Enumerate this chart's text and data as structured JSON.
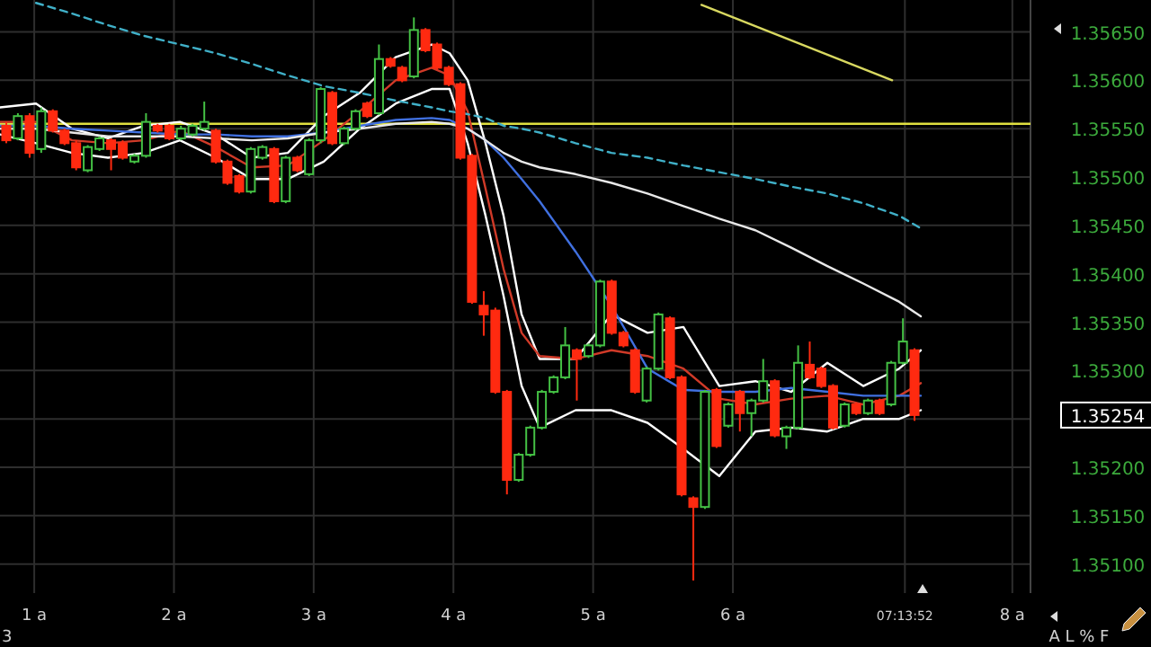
{
  "chart_data": {
    "type": "candlestick",
    "x": [
      0.8,
      0.883,
      0.967,
      1.05,
      1.133,
      1.217,
      1.3,
      1.383,
      1.467,
      1.55,
      1.633,
      1.717,
      1.8,
      1.883,
      1.967,
      2.05,
      2.133,
      2.217,
      2.3,
      2.383,
      2.467,
      2.55,
      2.633,
      2.717,
      2.8,
      2.883,
      2.967,
      3.05,
      3.133,
      3.217,
      3.3,
      3.383,
      3.467,
      3.55,
      3.633,
      3.717,
      3.8,
      3.883,
      3.967,
      4.05,
      4.133,
      4.217,
      4.3,
      4.383,
      4.467,
      4.55,
      4.633,
      4.717,
      4.8,
      4.883,
      4.967,
      5.05,
      5.133,
      5.217,
      5.3,
      5.383,
      5.467,
      5.55,
      5.633,
      5.717,
      5.8,
      5.883,
      5.967,
      6.05,
      6.133,
      6.217,
      6.3,
      6.383,
      6.467,
      6.55,
      6.633,
      6.717,
      6.8,
      6.883,
      6.967,
      7.05,
      7.133,
      7.217,
      7.3
    ],
    "ohlc": [
      [
        1.35553,
        1.35557,
        1.35535,
        1.35538
      ],
      [
        1.3554,
        1.35566,
        1.35538,
        1.35563
      ],
      [
        1.35563,
        1.35566,
        1.3552,
        1.35525
      ],
      [
        1.35529,
        1.35572,
        1.35525,
        1.35568
      ],
      [
        1.35568,
        1.3557,
        1.35546,
        1.35548
      ],
      [
        1.35548,
        1.3555,
        1.35533,
        1.35535
      ],
      [
        1.35535,
        1.35538,
        1.35507,
        1.3551
      ],
      [
        1.35507,
        1.35533,
        1.35505,
        1.35531
      ],
      [
        1.35529,
        1.35542,
        1.35527,
        1.3554
      ],
      [
        1.35538,
        1.3554,
        1.35507,
        1.35529
      ],
      [
        1.35535,
        1.35538,
        1.35518,
        1.3552
      ],
      [
        1.35516,
        1.35524,
        1.35514,
        1.35522
      ],
      [
        1.35522,
        1.35566,
        1.3552,
        1.35557
      ],
      [
        1.35553,
        1.35555,
        1.35546,
        1.35548
      ],
      [
        1.35553,
        1.35555,
        1.35538,
        1.3554
      ],
      [
        1.3554,
        1.35553,
        1.35538,
        1.3555
      ],
      [
        1.35544,
        1.35555,
        1.35542,
        1.35553
      ],
      [
        1.3555,
        1.35578,
        1.35548,
        1.35557
      ],
      [
        1.35548,
        1.3555,
        1.35514,
        1.35516
      ],
      [
        1.35516,
        1.35518,
        1.35492,
        1.35494
      ],
      [
        1.35501,
        1.35503,
        1.35483,
        1.35485
      ],
      [
        1.35485,
        1.35531,
        1.35483,
        1.35529
      ],
      [
        1.3552,
        1.35533,
        1.35518,
        1.35531
      ],
      [
        1.35529,
        1.35531,
        1.35473,
        1.35475
      ],
      [
        1.35475,
        1.35522,
        1.35473,
        1.3552
      ],
      [
        1.3552,
        1.35522,
        1.35505,
        1.35507
      ],
      [
        1.35503,
        1.3554,
        1.35501,
        1.35538
      ],
      [
        1.35538,
        1.35593,
        1.35535,
        1.35591
      ],
      [
        1.35587,
        1.35589,
        1.35533,
        1.35535
      ],
      [
        1.35535,
        1.35552,
        1.35533,
        1.3555
      ],
      [
        1.3555,
        1.3557,
        1.35548,
        1.35568
      ],
      [
        1.35576,
        1.35578,
        1.35561,
        1.35563
      ],
      [
        1.35566,
        1.35637,
        1.35564,
        1.35622
      ],
      [
        1.35622,
        1.35624,
        1.35613,
        1.35615
      ],
      [
        1.35613,
        1.35615,
        1.35598,
        1.356
      ],
      [
        1.35604,
        1.35665,
        1.35602,
        1.35652
      ],
      [
        1.35652,
        1.35654,
        1.35629,
        1.35631
      ],
      [
        1.35637,
        1.35639,
        1.35611,
        1.35613
      ],
      [
        1.35613,
        1.35615,
        1.35594,
        1.35596
      ],
      [
        1.35596,
        1.35598,
        1.35518,
        1.3552
      ],
      [
        1.35522,
        1.35524,
        1.35369,
        1.35371
      ],
      [
        1.35367,
        1.35382,
        1.35336,
        1.35358
      ],
      [
        1.35362,
        1.35365,
        1.35276,
        1.35278
      ],
      [
        1.35278,
        1.3528,
        1.35172,
        1.35187
      ],
      [
        1.35187,
        1.35215,
        1.35185,
        1.35213
      ],
      [
        1.35213,
        1.35243,
        1.35211,
        1.35241
      ],
      [
        1.35241,
        1.3528,
        1.35239,
        1.35278
      ],
      [
        1.35278,
        1.35295,
        1.35276,
        1.35293
      ],
      [
        1.35293,
        1.35345,
        1.35291,
        1.35326
      ],
      [
        1.35321,
        1.35323,
        1.35269,
        1.35312
      ],
      [
        1.35315,
        1.35328,
        1.35313,
        1.35326
      ],
      [
        1.35326,
        1.35394,
        1.35324,
        1.35392
      ],
      [
        1.35392,
        1.35394,
        1.35337,
        1.35339
      ],
      [
        1.35339,
        1.35341,
        1.35324,
        1.35326
      ],
      [
        1.35321,
        1.35323,
        1.35276,
        1.35278
      ],
      [
        1.35269,
        1.35304,
        1.35267,
        1.35302
      ],
      [
        1.35302,
        1.3536,
        1.353,
        1.35358
      ],
      [
        1.35354,
        1.35356,
        1.35291,
        1.35293
      ],
      [
        1.35293,
        1.35295,
        1.3517,
        1.35172
      ],
      [
        1.35168,
        1.3517,
        1.35083,
        1.35159
      ],
      [
        1.35159,
        1.3528,
        1.35157,
        1.35278
      ],
      [
        1.3528,
        1.35282,
        1.3522,
        1.35222
      ],
      [
        1.35243,
        1.35267,
        1.35241,
        1.35265
      ],
      [
        1.35278,
        1.3528,
        1.35237,
        1.35256
      ],
      [
        1.35256,
        1.35271,
        1.35232,
        1.35269
      ],
      [
        1.35269,
        1.35312,
        1.35267,
        1.35289
      ],
      [
        1.35289,
        1.35291,
        1.35231,
        1.35233
      ],
      [
        1.35232,
        1.35243,
        1.35219,
        1.35241
      ],
      [
        1.35241,
        1.35326,
        1.35239,
        1.35308
      ],
      [
        1.35306,
        1.3533,
        1.35291,
        1.35293
      ],
      [
        1.35302,
        1.35304,
        1.35282,
        1.35284
      ],
      [
        1.35284,
        1.35286,
        1.35239,
        1.35241
      ],
      [
        1.35243,
        1.35267,
        1.35241,
        1.35265
      ],
      [
        1.35265,
        1.35267,
        1.35254,
        1.35256
      ],
      [
        1.35256,
        1.35271,
        1.35254,
        1.35269
      ],
      [
        1.35269,
        1.35271,
        1.35254,
        1.35256
      ],
      [
        1.35265,
        1.3531,
        1.35263,
        1.35308
      ],
      [
        1.35308,
        1.35354,
        1.35306,
        1.3533
      ],
      [
        1.35321,
        1.35323,
        1.35248,
        1.35254
      ]
    ],
    "colors": [
      "#ff2a10",
      "#44c044",
      "#ff2a10",
      "#44c044",
      "#ff2a10",
      "#ff2a10",
      "#ff2a10",
      "#44c044",
      "#44c044",
      "#ff2a10",
      "#ff2a10",
      "#44c044",
      "#44c044",
      "#ff2a10",
      "#ff2a10",
      "#44c044",
      "#44c044",
      "#44c044",
      "#ff2a10",
      "#ff2a10",
      "#ff2a10",
      "#44c044",
      "#44c044",
      "#ff2a10",
      "#44c044",
      "#ff2a10",
      "#44c044",
      "#44c044",
      "#ff2a10",
      "#44c044",
      "#44c044",
      "#ff2a10",
      "#44c044",
      "#ff2a10",
      "#ff2a10",
      "#44c044",
      "#ff2a10",
      "#ff2a10",
      "#ff2a10",
      "#ff2a10",
      "#ff2a10",
      "#ff2a10",
      "#ff2a10",
      "#ff2a10",
      "#44c044",
      "#44c044",
      "#44c044",
      "#44c044",
      "#44c044",
      "#ff2a10",
      "#44c044",
      "#44c044",
      "#ff2a10",
      "#ff2a10",
      "#ff2a10",
      "#44c044",
      "#44c044",
      "#ff2a10",
      "#ff2a10",
      "#ff2a10",
      "#44c044",
      "#ff2a10",
      "#44c044",
      "#ff2a10",
      "#44c044",
      "#44c044",
      "#ff2a10",
      "#44c044",
      "#44c044",
      "#ff2a10",
      "#ff2a10",
      "#ff2a10",
      "#44c044",
      "#ff2a10",
      "#44c044",
      "#ff2a10",
      "#44c044",
      "#44c044",
      "#ff2a10"
    ],
    "series": [
      {
        "type": "line",
        "color": "#ffffff",
        "x": [
          0.756,
          1.013,
          1.27,
          1.528,
          1.785,
          2.043,
          2.3,
          2.557,
          2.815,
          3.072,
          3.33,
          3.587,
          3.844,
          3.973,
          4.102,
          4.23,
          4.359,
          4.488,
          4.617,
          4.874,
          5.131,
          5.389,
          5.646,
          5.903,
          6.161,
          6.418,
          6.676,
          6.933,
          7.191,
          7.345
        ],
        "values": [
          1.35572,
          1.35576,
          1.3555,
          1.3554,
          1.35553,
          1.35557,
          1.35544,
          1.3552,
          1.35525,
          1.35563,
          1.35587,
          1.35624,
          1.35637,
          1.35628,
          1.356,
          1.35535,
          1.3546,
          1.35358,
          1.35312,
          1.35312,
          1.35358,
          1.35339,
          1.35345,
          1.35284,
          1.35289,
          1.35278,
          1.35308,
          1.35284,
          1.35302,
          1.35321
        ]
      },
      {
        "type": "line",
        "color": "#ffffff",
        "x": [
          0.756,
          1.013,
          1.27,
          1.528,
          1.785,
          2.043,
          2.3,
          2.557,
          2.815,
          3.072,
          3.33,
          3.587,
          3.844,
          3.973,
          4.102,
          4.23,
          4.359,
          4.488,
          4.617,
          4.874,
          5.131,
          5.389,
          5.646,
          5.903,
          6.161,
          6.418,
          6.676,
          6.933,
          7.191,
          7.345
        ],
        "values": [
          1.35544,
          1.35535,
          1.35525,
          1.3552,
          1.35525,
          1.35538,
          1.3552,
          1.35498,
          1.35498,
          1.35516,
          1.3555,
          1.35576,
          1.35591,
          1.35591,
          1.35535,
          1.3546,
          1.35377,
          1.35284,
          1.35241,
          1.35259,
          1.35259,
          1.35246,
          1.35219,
          1.35191,
          1.35237,
          1.35241,
          1.35237,
          1.3525,
          1.3525,
          1.35259
        ]
      },
      {
        "type": "line",
        "color": "#d03a28",
        "x": [
          0.756,
          1.013,
          1.27,
          1.528,
          1.785,
          2.043,
          2.3,
          2.557,
          2.815,
          3.072,
          3.33,
          3.587,
          3.844,
          3.973,
          4.102,
          4.23,
          4.359,
          4.488,
          4.617,
          4.874,
          5.131,
          5.389,
          5.646,
          5.903,
          6.161,
          6.418,
          6.676,
          6.933,
          7.191,
          7.345
        ],
        "values": [
          1.35557,
          1.35557,
          1.35538,
          1.35535,
          1.35538,
          1.35548,
          1.35531,
          1.3551,
          1.35512,
          1.35538,
          1.35568,
          1.356,
          1.35613,
          1.35605,
          1.35568,
          1.35488,
          1.35405,
          1.35339,
          1.35315,
          1.35312,
          1.35321,
          1.35315,
          1.35302,
          1.35271,
          1.35265,
          1.35271,
          1.35274,
          1.35265,
          1.35274,
          1.35287
        ]
      },
      {
        "type": "line",
        "color": "#4070e0",
        "x": [
          0.756,
          1.013,
          1.27,
          1.528,
          1.785,
          2.043,
          2.3,
          2.557,
          2.815,
          3.072,
          3.33,
          3.587,
          3.844,
          3.973,
          4.102,
          4.23,
          4.359,
          4.488,
          4.617,
          4.874,
          5.131,
          5.389,
          5.646,
          5.903,
          6.161,
          6.418,
          6.676,
          6.933,
          7.191,
          7.345
        ],
        "values": [
          1.35553,
          1.35553,
          1.3555,
          1.35548,
          1.35546,
          1.35544,
          1.35544,
          1.35542,
          1.35542,
          1.35546,
          1.35553,
          1.35559,
          1.35561,
          1.35559,
          1.3555,
          1.35538,
          1.3552,
          1.35498,
          1.35475,
          1.35423,
          1.35367,
          1.35302,
          1.3528,
          1.35278,
          1.35278,
          1.35282,
          1.35278,
          1.35274,
          1.35274,
          1.35274
        ]
      },
      {
        "type": "line",
        "color": "#e8e8e8",
        "x": [
          0.756,
          1.013,
          1.27,
          1.528,
          1.785,
          2.043,
          2.3,
          2.557,
          2.815,
          3.072,
          3.33,
          3.587,
          3.844,
          3.973,
          4.102,
          4.23,
          4.359,
          4.488,
          4.617,
          4.874,
          5.131,
          5.389,
          5.646,
          5.903,
          6.161,
          6.418,
          6.676,
          6.933,
          7.191,
          7.345
        ],
        "values": [
          1.3555,
          1.3555,
          1.35546,
          1.35542,
          1.35542,
          1.35542,
          1.3554,
          1.35538,
          1.3554,
          1.35546,
          1.3555,
          1.35555,
          1.35557,
          1.35555,
          1.3555,
          1.35538,
          1.35525,
          1.35516,
          1.3551,
          1.35503,
          1.35494,
          1.35483,
          1.3547,
          1.35457,
          1.35445,
          1.35427,
          1.35408,
          1.3539,
          1.35371,
          1.35356
        ]
      },
      {
        "type": "line",
        "color": "#40b0c8",
        "line_style": "dashed",
        "x": [
          1.013,
          1.27,
          1.528,
          1.785,
          2.043,
          2.3,
          2.557,
          2.815,
          3.072,
          3.33,
          3.587,
          3.844,
          3.973,
          4.102,
          4.23,
          4.359,
          4.488,
          4.617,
          4.874,
          5.131,
          5.389,
          5.646,
          5.903,
          6.161,
          6.418,
          6.676,
          6.933,
          7.191,
          7.345
        ],
        "values": [
          1.3568,
          1.35669,
          1.35657,
          1.35646,
          1.35637,
          1.35628,
          1.35617,
          1.35605,
          1.35594,
          1.35587,
          1.35579,
          1.35572,
          1.35568,
          1.35565,
          1.35561,
          1.35553,
          1.3555,
          1.35546,
          1.35535,
          1.35525,
          1.3552,
          1.35512,
          1.35505,
          1.35498,
          1.3549,
          1.35483,
          1.35473,
          1.3546,
          1.35447
        ]
      },
      {
        "type": "line",
        "color": "#d8d860",
        "x": [
          5.775,
          7.14
        ],
        "values": [
          1.35678,
          1.356
        ]
      }
    ],
    "ref_lines": [
      {
        "axis": "y",
        "value": 1.35555,
        "color": "#e0e040"
      }
    ],
    "xlim": [
      0.755,
      8.13
    ],
    "xticks": [
      {
        "value": 1,
        "label": "1 a"
      },
      {
        "value": 2,
        "label": "2 a"
      },
      {
        "value": 3,
        "label": "3 a"
      },
      {
        "value": 4,
        "label": "4 a"
      },
      {
        "value": 5,
        "label": "5 a"
      },
      {
        "value": 6,
        "label": "6 a"
      },
      {
        "value": 7.231,
        "label": "07:13:52"
      },
      {
        "value": 8,
        "label": "8 a"
      }
    ],
    "ylim": [
      1.3507,
      1.35683
    ],
    "yticks": [
      {
        "value": 1.351,
        "label": "1.35100"
      },
      {
        "value": 1.3515,
        "label": "1.35150"
      },
      {
        "value": 1.352,
        "label": "1.35200"
      },
      {
        "value": 1.3525,
        "label": null
      },
      {
        "value": 1.353,
        "label": "1.35300"
      },
      {
        "value": 1.3535,
        "label": "1.35350"
      },
      {
        "value": 1.354,
        "label": "1.35400"
      },
      {
        "value": 1.3545,
        "label": "1.35450"
      },
      {
        "value": 1.355,
        "label": "1.35500"
      },
      {
        "value": 1.3555,
        "label": "1.35550"
      },
      {
        "value": 1.356,
        "label": "1.35600"
      },
      {
        "value": 1.3565,
        "label": "1.35650"
      }
    ],
    "grid": true,
    "annotations": [
      "3",
      "A L % F",
      "1.35254"
    ]
  }
}
